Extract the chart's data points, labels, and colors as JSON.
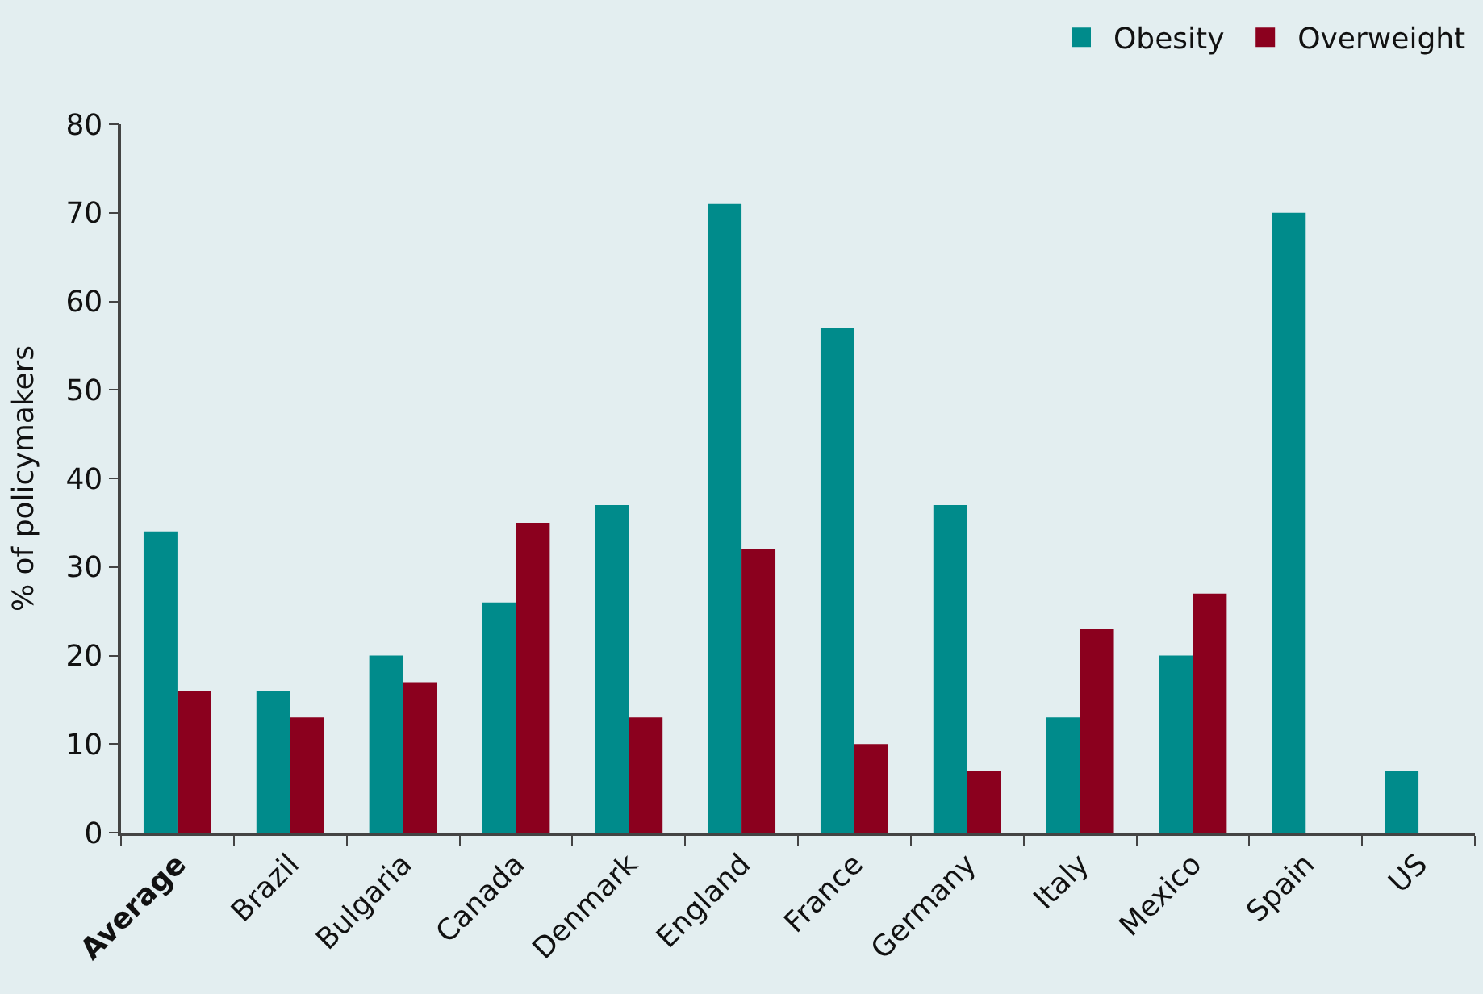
{
  "chart_data": {
    "type": "bar",
    "ylabel": "% of policymakers",
    "categories": [
      "Average",
      "Brazil",
      "Bulgaria",
      "Canada",
      "Denmark",
      "England",
      "France",
      "Germany",
      "Italy",
      "Mexico",
      "Spain",
      "US"
    ],
    "series": [
      {
        "name": "Obesity",
        "color": "#008b8b",
        "values": [
          34,
          16,
          20,
          26,
          37,
          71,
          57,
          37,
          13,
          20,
          70,
          7
        ]
      },
      {
        "name": "Overweight",
        "color": "#8b001e",
        "values": [
          16,
          13,
          17,
          35,
          13,
          32,
          10,
          7,
          23,
          27,
          null,
          null
        ]
      }
    ],
    "ylim": [
      0,
      80
    ],
    "yticks": [
      0,
      10,
      20,
      30,
      40,
      50,
      60,
      70,
      80
    ],
    "grid": false,
    "legend": "top right"
  }
}
